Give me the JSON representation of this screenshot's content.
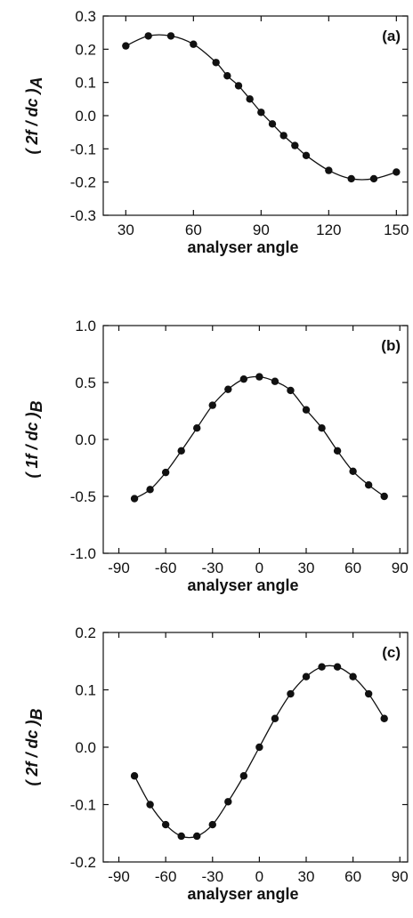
{
  "chart_data": [
    {
      "type": "line",
      "panel_label": "(a)",
      "xlabel": "analyser angle",
      "ylabel_main": "( 2f / dc )",
      "ylabel_sub": "A",
      "xlim": [
        20,
        155
      ],
      "ylim": [
        -0.3,
        0.3
      ],
      "xticks": [
        30,
        60,
        90,
        120,
        150
      ],
      "xtick_labels": [
        "30",
        "60",
        "90",
        "120",
        "150"
      ],
      "yticks": [
        -0.3,
        -0.2,
        -0.1,
        0.0,
        0.1,
        0.2,
        0.3
      ],
      "ytick_labels": [
        "-0.3",
        "-0.2",
        "-0.1",
        "0.0",
        "0.1",
        "0.2",
        "0.3"
      ],
      "series": [
        {
          "x": [
            30,
            40,
            50,
            60,
            70,
            75,
            80,
            85,
            90,
            95,
            100,
            105,
            110,
            120,
            130,
            140,
            150
          ],
          "y": [
            0.21,
            0.24,
            0.24,
            0.215,
            0.16,
            0.12,
            0.09,
            0.05,
            0.01,
            -0.025,
            -0.06,
            -0.09,
            -0.12,
            -0.165,
            -0.19,
            -0.19,
            -0.17
          ]
        }
      ]
    },
    {
      "type": "line",
      "panel_label": "(b)",
      "xlabel": "analyser angle",
      "ylabel_main": "( 1f / dc )",
      "ylabel_sub": "B",
      "xlim": [
        -100,
        95
      ],
      "ylim": [
        -1.0,
        1.0
      ],
      "xticks": [
        -90,
        -60,
        -30,
        0,
        30,
        60,
        90
      ],
      "xtick_labels": [
        "-90",
        "-60",
        "-30",
        "0",
        "30",
        "60",
        "90"
      ],
      "yticks": [
        -1.0,
        -0.5,
        0.0,
        0.5,
        1.0
      ],
      "ytick_labels": [
        "-1.0",
        "-0.5",
        "0.0",
        "0.5",
        "1.0"
      ],
      "series": [
        {
          "x": [
            -80,
            -70,
            -60,
            -50,
            -40,
            -30,
            -20,
            -10,
            0,
            10,
            20,
            30,
            40,
            50,
            60,
            70,
            80
          ],
          "y": [
            -0.52,
            -0.44,
            -0.29,
            -0.1,
            0.1,
            0.3,
            0.44,
            0.53,
            0.55,
            0.51,
            0.43,
            0.26,
            0.1,
            -0.1,
            -0.28,
            -0.4,
            -0.5
          ]
        }
      ]
    },
    {
      "type": "line",
      "panel_label": "(c)",
      "xlabel": "analyser angle",
      "ylabel_main": "( 2f / dc )",
      "ylabel_sub": "B",
      "xlim": [
        -100,
        95
      ],
      "ylim": [
        -0.2,
        0.2
      ],
      "xticks": [
        -90,
        -60,
        -30,
        0,
        30,
        60,
        90
      ],
      "xtick_labels": [
        "-90",
        "-60",
        "-30",
        "0",
        "30",
        "60",
        "90"
      ],
      "yticks": [
        -0.2,
        -0.1,
        0.0,
        0.1,
        0.2
      ],
      "ytick_labels": [
        "-0.2",
        "-0.1",
        "0.0",
        "0.1",
        "0.2"
      ],
      "series": [
        {
          "x": [
            -80,
            -70,
            -60,
            -50,
            -40,
            -30,
            -20,
            -10,
            0,
            10,
            20,
            30,
            40,
            50,
            60,
            70,
            80
          ],
          "y": [
            -0.05,
            -0.1,
            -0.135,
            -0.155,
            -0.155,
            -0.135,
            -0.095,
            -0.05,
            0.0,
            0.05,
            0.093,
            0.123,
            0.14,
            0.14,
            0.123,
            0.093,
            0.05
          ]
        }
      ]
    }
  ]
}
